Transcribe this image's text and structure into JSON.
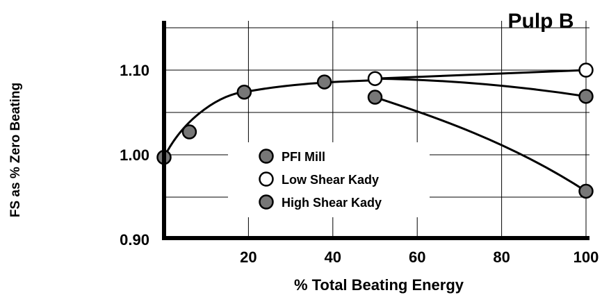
{
  "chart_data": {
    "type": "line",
    "title": "Pulp B",
    "xlabel": "% Total Beating Energy",
    "ylabel": "FS as % Zero Beating",
    "xlim": [
      0,
      100
    ],
    "ylim": [
      0.9,
      1.15
    ],
    "x_ticks": [
      20,
      40,
      60,
      80,
      100
    ],
    "y_ticks": [
      0.9,
      1.0,
      1.1
    ],
    "x_tick_labels": [
      "20",
      "40",
      "60",
      "80",
      "100"
    ],
    "y_tick_labels": [
      "0.90",
      "1.00",
      "1.10"
    ],
    "grid": true,
    "legend_position": "center",
    "colors": {
      "filled_marker": "#777777",
      "open_marker": "#ffffff",
      "stroke": "#000000"
    },
    "series": [
      {
        "name": "PFI Mill",
        "marker": "filled",
        "points": [
          [
            0,
            0.997
          ],
          [
            6,
            1.027
          ],
          [
            19,
            1.074
          ],
          [
            38,
            1.086
          ]
        ],
        "curve_end": [
          50,
          1.088
        ]
      },
      {
        "name": "Low Shear Kady",
        "marker": "open",
        "points": [
          [
            50,
            1.09
          ],
          [
            100,
            1.1
          ]
        ]
      },
      {
        "name": "High Shear Kady",
        "marker": "filled",
        "points": [
          [
            100,
            1.069
          ],
          [
            50,
            1.068
          ],
          [
            100,
            0.957
          ]
        ]
      }
    ],
    "legend": [
      {
        "label": "PFI Mill",
        "marker": "filled"
      },
      {
        "label": "Low Shear Kady",
        "marker": "open"
      },
      {
        "label": "High Shear Kady",
        "marker": "filled"
      }
    ]
  }
}
